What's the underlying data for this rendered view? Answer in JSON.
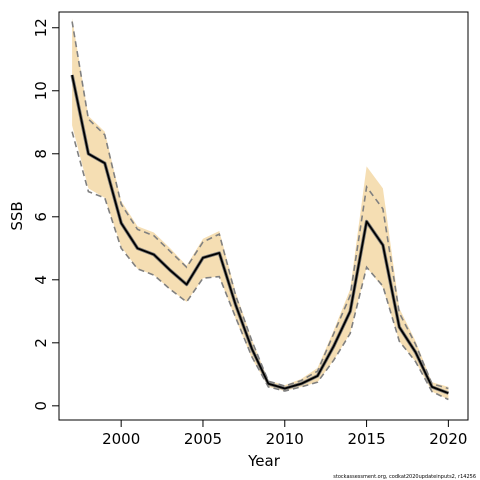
{
  "chart_data": {
    "type": "line",
    "xlabel": "Year",
    "ylabel": "SSB",
    "xlim": [
      1996.2,
      2021.2
    ],
    "ylim": [
      -0.45,
      12.5
    ],
    "x_ticks": [
      2000,
      2005,
      2010,
      2015,
      2020
    ],
    "y_ticks": [
      0,
      2,
      4,
      6,
      8,
      10,
      12
    ],
    "grid": false,
    "legend": "none",
    "colors": {
      "band": "#f5deb3",
      "bounds": "#808080",
      "estimate": "#000000",
      "estimate_shadow": "#7a7a7a"
    },
    "x": [
      1997,
      1998,
      1999,
      2000,
      2001,
      2002,
      2003,
      2004,
      2005,
      2006,
      2007,
      2008,
      2009,
      2010,
      2011,
      2012,
      2013,
      2014,
      2015,
      2016,
      2017,
      2018,
      2019,
      2020
    ],
    "series": [
      {
        "values": [
          10.5,
          8.0,
          7.7,
          5.8,
          5.0,
          4.8,
          4.3,
          3.85,
          4.7,
          4.85,
          3.2,
          1.8,
          0.7,
          0.55,
          0.7,
          0.95,
          1.9,
          3.0,
          5.85,
          5.1,
          2.5,
          1.7,
          0.6,
          0.4
        ]
      }
    ],
    "band": {
      "lower": [
        8.9,
        6.9,
        6.6,
        5.05,
        4.35,
        4.15,
        3.7,
        3.3,
        4.05,
        4.1,
        2.75,
        1.5,
        0.6,
        0.47,
        0.6,
        0.75,
        1.45,
        2.3,
        4.4,
        3.75,
        2.05,
        1.4,
        0.45,
        0.2
      ],
      "upper": [
        12.3,
        9.2,
        8.7,
        6.5,
        5.7,
        5.5,
        5.0,
        4.45,
        5.3,
        5.55,
        3.6,
        2.1,
        0.8,
        0.65,
        0.85,
        1.2,
        2.4,
        3.7,
        7.6,
        6.9,
        3.1,
        2.05,
        0.75,
        0.6
      ]
    },
    "bounds": {
      "lower": [
        8.7,
        6.8,
        6.6,
        5.0,
        4.35,
        4.15,
        3.7,
        3.3,
        4.05,
        4.1,
        2.8,
        1.55,
        0.6,
        0.47,
        0.6,
        0.75,
        1.45,
        2.3,
        4.4,
        3.8,
        2.05,
        1.4,
        0.45,
        0.2
      ],
      "upper": [
        12.2,
        9.1,
        8.6,
        6.4,
        5.6,
        5.4,
        4.9,
        4.4,
        5.2,
        5.45,
        3.5,
        2.05,
        0.78,
        0.63,
        0.8,
        1.1,
        2.3,
        3.5,
        6.95,
        6.25,
        2.95,
        1.95,
        0.7,
        0.55
      ]
    }
  },
  "footnote": "stockassessment.org, codkat2020updateinputs2, r14256"
}
